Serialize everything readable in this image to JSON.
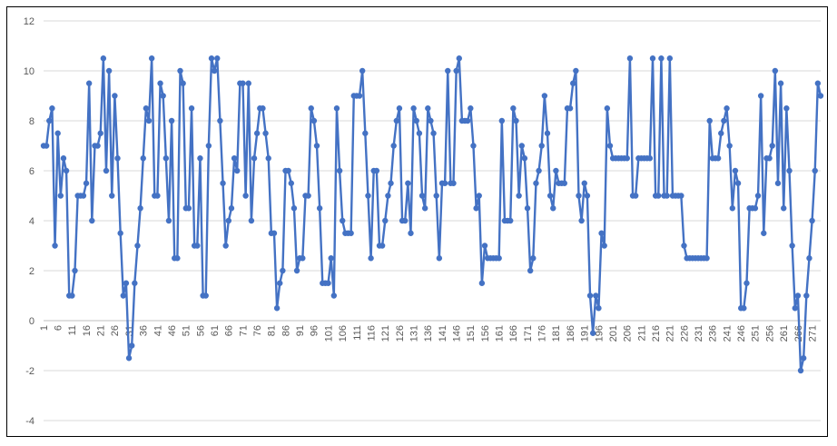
{
  "chart_data": {
    "type": "line",
    "title": "",
    "xlabel": "",
    "ylabel": "",
    "ylim": [
      -4,
      12
    ],
    "yticks": [
      -4,
      -2,
      0,
      2,
      4,
      6,
      8,
      10,
      12
    ],
    "xtick_labels": [
      "1",
      "6",
      "11",
      "16",
      "21",
      "26",
      "31",
      "36",
      "41",
      "46",
      "51",
      "56",
      "61",
      "66",
      "71",
      "76",
      "81",
      "86",
      "91",
      "96",
      "101",
      "106",
      "111",
      "116",
      "121",
      "126",
      "131",
      "136",
      "141",
      "146",
      "151",
      "156",
      "161",
      "166",
      "171",
      "176",
      "181",
      "186",
      "191",
      "196",
      "201",
      "206",
      "211",
      "216",
      "221",
      "226",
      "231",
      "236",
      "241",
      "246",
      "251",
      "256",
      "261",
      "266",
      "271"
    ],
    "grid": true,
    "legend": "none",
    "series_color": "#4472C4",
    "x": [
      1,
      2,
      3,
      4,
      5,
      6,
      7,
      8,
      9,
      10,
      11,
      12,
      13,
      14,
      15,
      16,
      17,
      18,
      19,
      20,
      21,
      22,
      23,
      24,
      25,
      26,
      27,
      28,
      29,
      30,
      31,
      32,
      33,
      34,
      35,
      36,
      37,
      38,
      39,
      40,
      41,
      42,
      43,
      44,
      45,
      46,
      47,
      48,
      49,
      50,
      51,
      52,
      53,
      54,
      55,
      56,
      57,
      58,
      59,
      60,
      61,
      62,
      63,
      64,
      65,
      66,
      67,
      68,
      69,
      70,
      71,
      72,
      73,
      74,
      75,
      76,
      77,
      78,
      79,
      80,
      81,
      82,
      83,
      84,
      85,
      86,
      87,
      88,
      89,
      90,
      91,
      92,
      93,
      94,
      95,
      96,
      97,
      98,
      99,
      100,
      101,
      102,
      103,
      104,
      105,
      106,
      107,
      108,
      109,
      110,
      111,
      112,
      113,
      114,
      115,
      116,
      117,
      118,
      119,
      120,
      121,
      122,
      123,
      124,
      125,
      126,
      127,
      128,
      129,
      130,
      131,
      132,
      133,
      134,
      135,
      136,
      137,
      138,
      139,
      140,
      141,
      142,
      143,
      144,
      145,
      146,
      147,
      148,
      149,
      150,
      151,
      152,
      153,
      154,
      155,
      156,
      157,
      158,
      159,
      160,
      161,
      162,
      163,
      164,
      165,
      166,
      167,
      168,
      169,
      170,
      171,
      172,
      173,
      174,
      175,
      176,
      177,
      178,
      179,
      180,
      181,
      182,
      183,
      184,
      185,
      186,
      187,
      188,
      189,
      190,
      191,
      192,
      193,
      194,
      195,
      196,
      197,
      198,
      199,
      200,
      201,
      202,
      203,
      204,
      205,
      206,
      207,
      208,
      209,
      210,
      211,
      212,
      213,
      214,
      215,
      216,
      217,
      218,
      219,
      220,
      221,
      222,
      223,
      224,
      225,
      226,
      227,
      228,
      229,
      230,
      231,
      232,
      233,
      234,
      235,
      236,
      237,
      238,
      239,
      240,
      241,
      242,
      243,
      244,
      245,
      246,
      247,
      248,
      249,
      250,
      251,
      252,
      253,
      254,
      255,
      256,
      257,
      258,
      259,
      260,
      261,
      262,
      263,
      264,
      265,
      266,
      267,
      268,
      269,
      270,
      271,
      272,
      273,
      274
    ],
    "values": [
      7,
      7,
      8,
      8.5,
      3,
      7.5,
      5,
      6.5,
      6,
      1,
      1,
      2,
      5,
      5,
      5,
      5.5,
      9.5,
      4,
      7,
      7,
      7.5,
      10.5,
      6,
      10,
      5,
      9,
      6.5,
      3.5,
      1,
      1.5,
      -1.5,
      -1,
      1.5,
      3,
      4.5,
      6.5,
      8.5,
      8,
      10.5,
      5,
      5,
      9.5,
      9,
      6.5,
      4,
      8,
      2.5,
      2.5,
      10,
      9.5,
      4.5,
      4.5,
      8.5,
      3,
      3,
      6.5,
      1,
      1,
      7,
      10.5,
      10,
      10.5,
      8,
      5.5,
      3,
      4,
      4.5,
      6.5,
      6,
      9.5,
      9.5,
      5,
      9.5,
      4,
      6.5,
      7.5,
      8.5,
      8.5,
      7.5,
      6.5,
      3.5,
      3.5,
      0.5,
      1.5,
      2,
      6,
      6,
      5.5,
      4.5,
      2,
      2.5,
      2.5,
      5,
      5,
      8.5,
      8,
      7,
      4.5,
      1.5,
      1.5,
      1.5,
      2.5,
      1,
      8.5,
      6,
      4,
      3.5,
      3.5,
      3.5,
      9,
      9,
      9,
      10,
      7.5,
      5,
      2.5,
      6,
      6,
      3,
      3,
      4,
      5,
      5.5,
      7,
      8,
      8.5,
      4,
      4,
      5.5,
      3.5,
      8.5,
      8,
      7.5,
      5,
      4.5,
      8.5,
      8,
      7.5,
      5,
      2.5,
      5.5,
      5.5,
      10,
      5.5,
      5.5,
      10,
      10.5,
      8,
      8,
      8,
      8.5,
      7,
      4.5,
      5,
      1.5,
      3,
      2.5,
      2.5,
      2.5,
      2.5,
      2.5,
      8,
      4,
      4,
      4,
      8.5,
      8,
      5,
      7,
      6.5,
      4.5,
      2,
      2.5,
      5.5,
      6,
      7,
      9,
      7.5,
      5,
      4.5,
      6,
      5.5,
      5.5,
      5.5,
      8.5,
      8.5,
      9.5,
      10,
      5,
      4,
      5.5,
      5,
      1,
      -0.5,
      1,
      0.5,
      3.5,
      3,
      8.5,
      7,
      6.5,
      6.5,
      6.5,
      6.5,
      6.5,
      6.5,
      10.5,
      5,
      5,
      6.5,
      6.5,
      6.5,
      6.5,
      6.5,
      10.5,
      5,
      5,
      10.5,
      5,
      5,
      10.5,
      5,
      5,
      5,
      5,
      3,
      2.5,
      2.5,
      2.5,
      2.5,
      2.5,
      2.5,
      2.5,
      2.5,
      8,
      6.5,
      6.5,
      6.5,
      7.5,
      8,
      8.5,
      7,
      4.5,
      6,
      5.5,
      0.5,
      0.5,
      1.5,
      4.5,
      4.5,
      4.5,
      5,
      9,
      3.5,
      6.5,
      6.5,
      7,
      10,
      5.5,
      9.5,
      4.5,
      8.5,
      6,
      3,
      0.5,
      1,
      -2,
      -1.5,
      1,
      2.5,
      4,
      6,
      9.5,
      9
    ]
  }
}
